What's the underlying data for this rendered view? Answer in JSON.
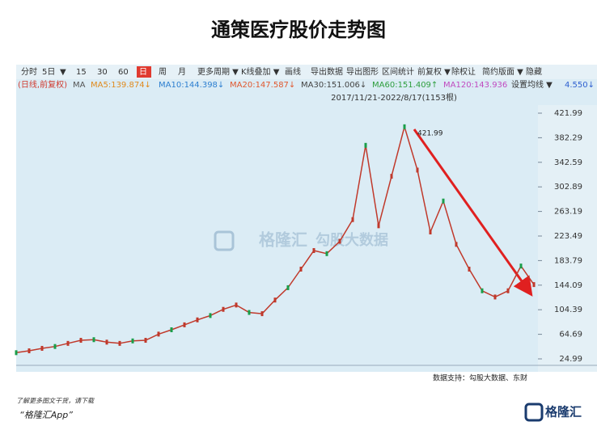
{
  "chart_data": {
    "type": "line",
    "title": "通策医疗股价走势图",
    "series": [
      {
        "name": "通策医疗",
        "color": "#c0392b",
        "values": [
          35,
          38,
          42,
          45,
          50,
          55,
          56,
          52,
          50,
          54,
          55,
          65,
          72,
          80,
          88,
          95,
          105,
          112,
          100,
          98,
          120,
          140,
          170,
          200,
          195,
          215,
          250,
          370,
          240,
          320,
          400,
          330,
          230,
          280,
          210,
          170,
          135,
          125,
          135,
          175,
          145
        ]
      }
    ],
    "ylim": [
      24.99,
      421.99
    ],
    "yticks": [
      421.99,
      382.29,
      342.59,
      302.89,
      263.19,
      223.49,
      183.79,
      144.09,
      104.39,
      64.69,
      24.99
    ],
    "grid": false,
    "annotation": "421.99",
    "date_range": "2017/11/21-2022/8/17(1153根)"
  },
  "toolbar": [
    "分时",
    "5日",
    "▼",
    "15",
    "30",
    "60",
    "日",
    "周",
    "月",
    "更多周期 ▼",
    "K线叠加 ▼",
    "画线",
    "导出数据",
    "导出图形",
    "区间统计",
    "前复权 ▼",
    "除权让",
    "简约版面 ▼",
    "隐藏"
  ],
  "ma_row": [
    "(日线,前复权)",
    "MA",
    "MA5:139.874↓",
    "MA10:144.398↓",
    "MA20:147.587↓",
    "MA30:151.006↓",
    "MA60:151.409↑",
    "MA120:143.936",
    "设置均线 ▼",
    "4.550↓"
  ],
  "watermark": [
    "格隆汇",
    "勾股大数据"
  ],
  "source": "数据支持：勾股大数据、东财",
  "footer": [
    "了解更多图文干货，请下载",
    "“格隆汇App”"
  ],
  "logo": "格隆汇"
}
